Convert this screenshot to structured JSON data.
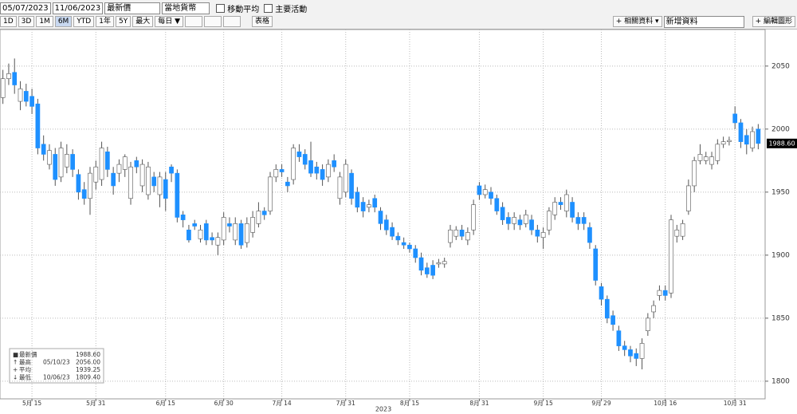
{
  "toolbar": {
    "start_date": "05/07/2023",
    "end_date": "11/06/2023",
    "price_field": "最新價",
    "currency": "當地貨幣",
    "checkboxes": [
      "移動平均",
      "主要活動"
    ],
    "ranges": [
      "1D",
      "3D",
      "1M",
      "6M",
      "YTD",
      "1年",
      "5Y",
      "最大"
    ],
    "selected_range": "6M",
    "frequency": "每日 ▼",
    "table": "表格",
    "related": "相關資料",
    "add_data": "新增資料",
    "edit": "編輯圖形"
  },
  "legend": [
    {
      "label": "最新價",
      "value": "1988.60"
    },
    {
      "label": "最高",
      "date": "05/10/23",
      "value": "2056.00"
    },
    {
      "label": "平均",
      "value": "1939.25"
    },
    {
      "label": "最低",
      "date": "10/06/23",
      "value": "1809.40"
    }
  ],
  "chart_data": {
    "type": "candlestick",
    "xlabel": "2023",
    "up_color": "#ffffff",
    "down_color": "#1e90ff",
    "grid": true,
    "ylim": [
      1786,
      2079
    ],
    "yticks": [
      1800,
      1850,
      1900,
      1950,
      2000,
      2050
    ],
    "categories": [
      null,
      null,
      null,
      null,
      null,
      "5月 15",
      null,
      null,
      null,
      null,
      null,
      null,
      null,
      null,
      null,
      null,
      "5月 31",
      null,
      null,
      null,
      null,
      null,
      null,
      null,
      null,
      null,
      null,
      null,
      "6月 15",
      null,
      null,
      null,
      null,
      null,
      null,
      null,
      null,
      null,
      "6月 30",
      null,
      null,
      null,
      null,
      null,
      null,
      null,
      null,
      null,
      "7月 14",
      null,
      null,
      null,
      null,
      null,
      null,
      null,
      null,
      null,
      null,
      "7月 31",
      null,
      null,
      null,
      null,
      null,
      null,
      null,
      null,
      null,
      null,
      "8月 15",
      null,
      null,
      null,
      null,
      null,
      null,
      null,
      null,
      null,
      null,
      null,
      "8月 31",
      null,
      null,
      null,
      null,
      null,
      null,
      null,
      null,
      null,
      null,
      "9月 15",
      null,
      null,
      null,
      null,
      null,
      null,
      null,
      null,
      null,
      "9月 29",
      null,
      null,
      null,
      null,
      null,
      null,
      null,
      null,
      null,
      null,
      "10月 16",
      null,
      null,
      null,
      null,
      null,
      null,
      null,
      null,
      null,
      null,
      null,
      "10月 31",
      null,
      null,
      null,
      null
    ],
    "open": [
      2025,
      2040,
      2045,
      2022,
      2030,
      2026,
      2020,
      1988,
      1972,
      1980,
      1962,
      1970,
      1980,
      1964,
      1952,
      1945,
      1958,
      1960,
      1982,
      1965,
      1965,
      1968,
      1945,
      1975,
      1955,
      1948,
      1962,
      1948,
      1960,
      1970,
      1965,
      1932,
      1920,
      1925,
      1913,
      1925,
      1914,
      1908,
      1912,
      1925,
      1912,
      1925,
      1910,
      1918,
      1925,
      1935,
      1935,
      1962,
      1968,
      1958,
      1960,
      1982,
      1980,
      1975,
      1970,
      1968,
      1962,
      1975,
      1945,
      1950,
      1965,
      1950,
      1942,
      1938,
      1945,
      1935,
      1928,
      1922,
      1915,
      1910,
      1908,
      1905,
      1898,
      1890,
      1892,
      1893,
      1893,
      1910,
      1915,
      1920,
      1912,
      1920,
      1955,
      1948,
      1950,
      1945,
      1938,
      1930,
      1925,
      1928,
      1925,
      1928,
      1920,
      1914,
      1920,
      1932,
      1942,
      1935,
      1942,
      1930,
      1930,
      1922,
      1905,
      1875,
      1865,
      1852,
      1840,
      1828,
      1825,
      1822,
      1818,
      1840,
      1855,
      1868,
      1872,
      1870,
      1915,
      1915,
      1935,
      1955,
      1975,
      1975,
      1972,
      1975,
      1988,
      1990,
      2012,
      2005,
      1995,
      1985,
      2000
    ],
    "high": [
      2047,
      2052,
      2056,
      2038,
      2036,
      2032,
      2024,
      1995,
      1988,
      1985,
      1990,
      1988,
      1984,
      1968,
      1958,
      1970,
      1975,
      1990,
      1986,
      1970,
      1976,
      1980,
      1974,
      1978,
      1976,
      1974,
      1966,
      1966,
      1966,
      1972,
      1968,
      1935,
      1924,
      1928,
      1924,
      1928,
      1918,
      1918,
      1934,
      1930,
      1930,
      1928,
      1930,
      1935,
      1942,
      1938,
      1966,
      1972,
      1972,
      1962,
      1988,
      1988,
      1984,
      1990,
      1974,
      1972,
      1976,
      1980,
      1966,
      1976,
      1968,
      1954,
      1946,
      1944,
      1948,
      1938,
      1932,
      1926,
      1918,
      1914,
      1910,
      1908,
      1902,
      1894,
      1896,
      1897,
      1898,
      1924,
      1923,
      1924,
      1922,
      1944,
      1958,
      1956,
      1954,
      1948,
      1942,
      1934,
      1934,
      1932,
      1936,
      1932,
      1924,
      1922,
      1938,
      1946,
      1946,
      1952,
      1946,
      1934,
      1934,
      1926,
      1908,
      1878,
      1868,
      1856,
      1844,
      1832,
      1828,
      1826,
      1834,
      1854,
      1864,
      1876,
      1876,
      1932,
      1924,
      1928,
      1960,
      1978,
      1988,
      1982,
      1982,
      1992,
      1994,
      1994,
      2018,
      2008,
      2000,
      2002,
      2004
    ],
    "low": [
      2020,
      2035,
      2028,
      2015,
      2018,
      2012,
      1980,
      1975,
      1968,
      1955,
      1958,
      1965,
      1962,
      1944,
      1940,
      1932,
      1952,
      1955,
      1962,
      1948,
      1958,
      1962,
      1940,
      1965,
      1950,
      1944,
      1950,
      1938,
      1935,
      1958,
      1926,
      1922,
      1910,
      1920,
      1910,
      1908,
      1908,
      1900,
      1908,
      1918,
      1908,
      1905,
      1906,
      1914,
      1922,
      1928,
      1932,
      1958,
      1962,
      1950,
      1956,
      1974,
      1968,
      1962,
      1960,
      1955,
      1958,
      1966,
      1940,
      1946,
      1940,
      1934,
      1930,
      1934,
      1934,
      1920,
      1916,
      1912,
      1908,
      1905,
      1902,
      1894,
      1884,
      1882,
      1881,
      1890,
      1890,
      1906,
      1912,
      1912,
      1908,
      1916,
      1944,
      1945,
      1940,
      1932,
      1924,
      1920,
      1920,
      1920,
      1922,
      1916,
      1910,
      1905,
      1916,
      1928,
      1936,
      1930,
      1926,
      1920,
      1920,
      1905,
      1876,
      1860,
      1846,
      1840,
      1824,
      1820,
      1815,
      1812,
      1809.4,
      1836,
      1850,
      1864,
      1864,
      1866,
      1910,
      1912,
      1932,
      1950,
      1972,
      1972,
      1968,
      1972,
      1985,
      1987,
      2000,
      1985,
      1980,
      1982,
      1984
    ],
    "close": [
      2040,
      2044,
      2035,
      2032,
      2022,
      2018,
      1985,
      1980,
      1983,
      1960,
      1985,
      1980,
      1968,
      1950,
      1945,
      1965,
      1970,
      1985,
      1968,
      1955,
      1972,
      1978,
      1970,
      1970,
      1972,
      1970,
      1955,
      1962,
      1945,
      1965,
      1930,
      1928,
      1912,
      1923,
      1920,
      1912,
      1912,
      1914,
      1930,
      1923,
      1925,
      1908,
      1925,
      1930,
      1935,
      1932,
      1962,
      1968,
      1966,
      1955,
      1985,
      1978,
      1972,
      1965,
      1965,
      1960,
      1972,
      1970,
      1962,
      1972,
      1945,
      1938,
      1935,
      1940,
      1938,
      1925,
      1920,
      1915,
      1912,
      1908,
      1905,
      1898,
      1888,
      1885,
      1884,
      1894,
      1895,
      1920,
      1920,
      1915,
      1918,
      1940,
      1948,
      1952,
      1945,
      1935,
      1928,
      1925,
      1930,
      1924,
      1932,
      1920,
      1915,
      1918,
      1935,
      1942,
      1940,
      1948,
      1930,
      1925,
      1925,
      1910,
      1880,
      1865,
      1850,
      1845,
      1828,
      1825,
      1820,
      1818,
      1830,
      1850,
      1860,
      1872,
      1868,
      1928,
      1920,
      1925,
      1955,
      1975,
      1980,
      1978,
      1978,
      1988,
      1990,
      1991,
      2005,
      1990,
      1988,
      1998,
      1988.6
    ]
  }
}
